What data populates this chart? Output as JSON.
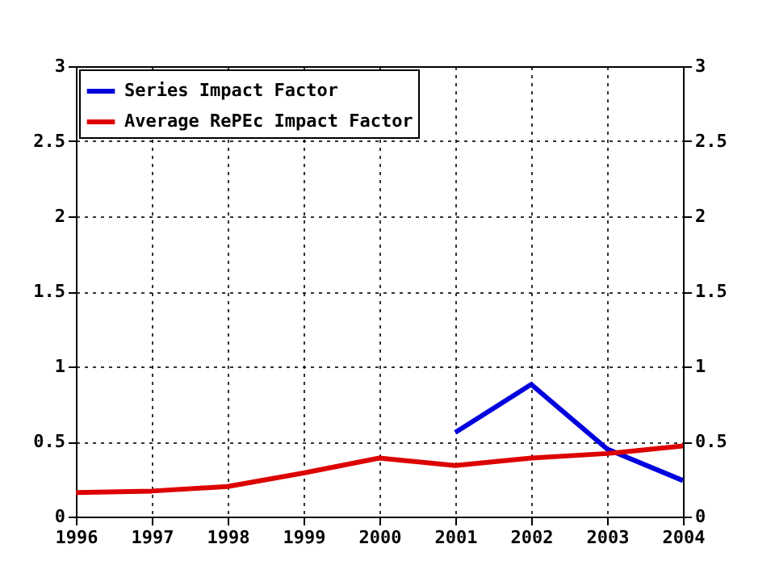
{
  "chart_data": {
    "type": "line",
    "x": [
      1996,
      1997,
      1998,
      1999,
      2000,
      2001,
      2002,
      2003,
      2004
    ],
    "series": [
      {
        "name": "Series Impact Factor",
        "color": "#0000dd",
        "values": [
          null,
          null,
          null,
          null,
          null,
          0.56,
          0.88,
          0.45,
          0.24
        ]
      },
      {
        "name": "Average RePEc Impact Factor",
        "color": "#dd0000",
        "values": [
          0.16,
          0.17,
          0.2,
          0.29,
          0.39,
          0.34,
          0.39,
          0.42,
          0.47
        ]
      }
    ],
    "xlim": [
      1996,
      2004
    ],
    "xticks": [
      1996,
      1997,
      1998,
      1999,
      2000,
      2001,
      2002,
      2003,
      2004
    ],
    "ylim": [
      0,
      3
    ],
    "yticks": [
      0,
      0.5,
      1,
      1.5,
      2,
      2.5,
      3
    ],
    "y2lim": [
      0,
      3
    ],
    "y2ticks": [
      0,
      0.5,
      1,
      1.5,
      2,
      2.5,
      3
    ],
    "grid": true,
    "legend": "top left",
    "marker": "none",
    "line_style": "solid"
  }
}
